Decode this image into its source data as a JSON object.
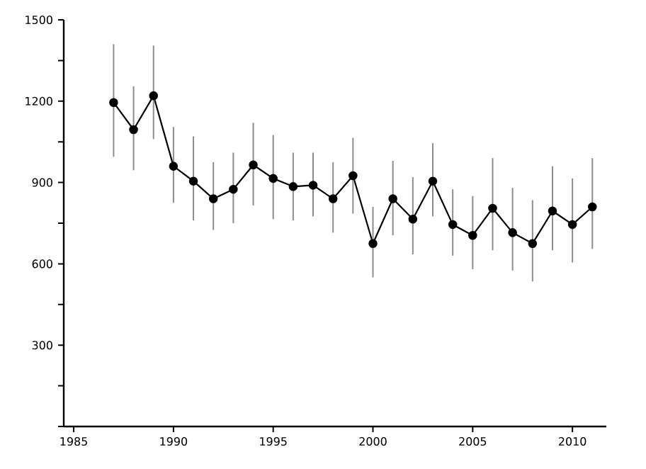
{
  "chart_data": {
    "type": "line",
    "x": [
      1987,
      1988,
      1989,
      1990,
      1991,
      1992,
      1993,
      1994,
      1995,
      1996,
      1997,
      1998,
      1999,
      2000,
      2001,
      2002,
      2003,
      2004,
      2005,
      2006,
      2007,
      2008,
      2009,
      2010,
      2011
    ],
    "series": [
      {
        "color": "#000000",
        "values": [
          1195,
          1095,
          1220,
          960,
          905,
          840,
          875,
          965,
          915,
          885,
          890,
          840,
          925,
          675,
          840,
          765,
          905,
          745,
          705,
          805,
          715,
          675,
          795,
          745,
          810
        ],
        "errors": [
          [
            995,
            1410
          ],
          [
            945,
            1255
          ],
          [
            1060,
            1405
          ],
          [
            825,
            1105
          ],
          [
            760,
            1070
          ],
          [
            725,
            975
          ],
          [
            750,
            1010
          ],
          [
            815,
            1120
          ],
          [
            765,
            1075
          ],
          [
            760,
            1010
          ],
          [
            775,
            1010
          ],
          [
            715,
            975
          ],
          [
            785,
            1065
          ],
          [
            550,
            810
          ],
          [
            705,
            980
          ],
          [
            635,
            920
          ],
          [
            775,
            1045
          ],
          [
            630,
            875
          ],
          [
            580,
            850
          ],
          [
            650,
            990
          ],
          [
            575,
            880
          ],
          [
            535,
            835
          ],
          [
            650,
            960
          ],
          [
            605,
            915
          ],
          [
            655,
            990
          ]
        ]
      }
    ],
    "xlim": [
      1984.5,
      2011.7
    ],
    "ylim": [
      0,
      1500
    ],
    "xticks": [
      1985,
      1990,
      1995,
      2000,
      2005,
      2010
    ],
    "yticks": [
      {
        "value": 0,
        "label": null
      },
      {
        "value": 150,
        "label": null
      },
      300,
      {
        "value": 450,
        "label": null
      },
      600,
      {
        "value": 750,
        "label": null
      },
      900,
      {
        "value": 1050,
        "label": null
      },
      1200,
      {
        "value": 1350,
        "label": null
      },
      1500
    ],
    "marker": "circle",
    "line_style": "solid"
  }
}
